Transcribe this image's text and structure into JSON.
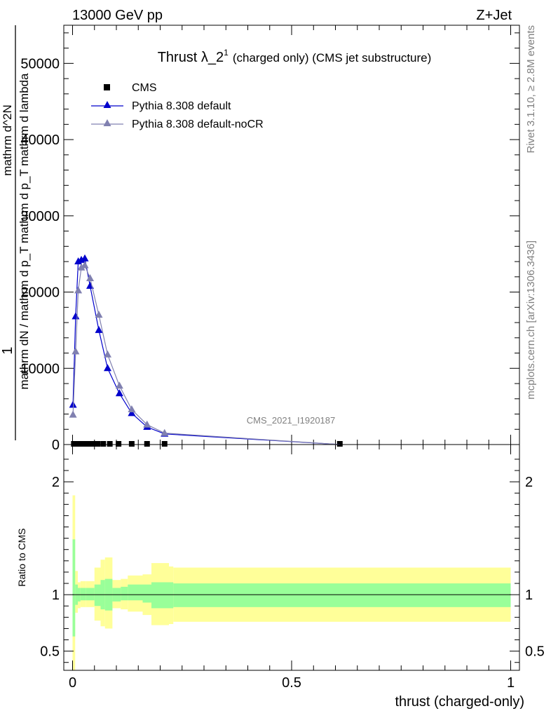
{
  "header": {
    "left": "13000 GeV pp",
    "right": "Z+Jet"
  },
  "side_texts": {
    "rivet": "Rivet 3.1.10, ≥ 2.8M events",
    "mcplots": "mcplots.cern.ch [arXiv:1306.3436]"
  },
  "analysis_id": "CMS_2021_I1920187",
  "chart_data": [
    {
      "type": "line",
      "title": "Thrust λ_2",
      "title_sup": "1",
      "subtitle": "(charged only) (CMS jet substructure)",
      "ylabel_numerator": "1",
      "ylabel_denominator": "mathrm dN / mathrm d p_T mathrm d p_T mathrm d lambda",
      "ylabel_sub": "mathrm d^2N",
      "ylim": [
        0,
        55000
      ],
      "xlim": [
        -0.02,
        1.02
      ],
      "yticks": [
        0,
        10000,
        20000,
        30000,
        40000,
        50000
      ],
      "ytick_labels": [
        "0",
        "10000",
        "20000",
        "30000",
        "40000",
        "50000"
      ],
      "legend": {
        "position": "top-left",
        "entries": [
          "CMS",
          "Pythia 8.308 default",
          "Pythia 8.308 default-noCR"
        ]
      },
      "series": [
        {
          "name": "CMS",
          "marker": "square",
          "color": "#000000",
          "x": [
            0.003,
            0.009,
            0.015,
            0.021,
            0.027,
            0.035,
            0.045,
            0.057,
            0.07,
            0.085,
            0.105,
            0.135,
            0.17,
            0.21,
            0.61
          ],
          "y": [
            0,
            0,
            0,
            0,
            0,
            0,
            0,
            0,
            0,
            0,
            0,
            0,
            0,
            0,
            0
          ]
        },
        {
          "name": "Pythia 8.308 default",
          "marker": "triangle",
          "color": "#0000cc",
          "x": [
            0.001,
            0.007,
            0.013,
            0.02,
            0.028,
            0.04,
            0.06,
            0.08,
            0.107,
            0.135,
            0.17,
            0.21,
            0.61
          ],
          "y": [
            5200,
            16800,
            24000,
            24200,
            24400,
            20800,
            15000,
            10000,
            6700,
            4100,
            2300,
            1400,
            0
          ]
        },
        {
          "name": "Pythia 8.308 default-noCR",
          "marker": "triangle",
          "color": "#8080b0",
          "x": [
            0.001,
            0.007,
            0.013,
            0.02,
            0.028,
            0.04,
            0.06,
            0.08,
            0.107,
            0.135,
            0.17,
            0.21,
            0.61
          ],
          "y": [
            3900,
            12200,
            20200,
            23200,
            23500,
            21800,
            17000,
            11800,
            7700,
            4600,
            2600,
            1500,
            0
          ]
        }
      ]
    },
    {
      "type": "area",
      "ylabel": "Ratio to CMS",
      "xlabel": "thrust (charged-only)",
      "ylim": [
        0.33,
        2.33
      ],
      "yticks": [
        0.5,
        1,
        2
      ],
      "ytick_labels": [
        "0.5",
        "1",
        "2"
      ],
      "xticks": [
        0,
        0.5,
        1
      ],
      "xtick_labels": [
        "0",
        "0.5",
        "1"
      ],
      "reference_line": 1,
      "bands": {
        "edges": [
          0,
          0.006,
          0.012,
          0.018,
          0.024,
          0.03,
          0.036,
          0.05,
          0.064,
          0.074,
          0.091,
          0.11,
          0.126,
          0.16,
          0.18,
          0.22,
          0.23,
          1.0
        ],
        "green_low": [
          0.63,
          0.91,
          0.94,
          0.95,
          0.95,
          0.95,
          0.95,
          0.9,
          0.87,
          0.86,
          0.94,
          0.95,
          0.95,
          0.93,
          0.88,
          0.88,
          0.89
        ],
        "green_high": [
          1.49,
          1.09,
          1.06,
          1.06,
          1.06,
          1.06,
          1.06,
          1.09,
          1.13,
          1.14,
          1.06,
          1.07,
          1.09,
          1.09,
          1.11,
          1.11,
          1.1
        ],
        "yellow_low": [
          0.33,
          0.84,
          0.88,
          0.89,
          0.89,
          0.89,
          0.89,
          0.77,
          0.72,
          0.7,
          0.88,
          0.87,
          0.85,
          0.82,
          0.73,
          0.74,
          0.76
        ],
        "yellow_high": [
          1.88,
          1.21,
          1.11,
          1.12,
          1.12,
          1.12,
          1.12,
          1.24,
          1.31,
          1.33,
          1.13,
          1.14,
          1.17,
          1.18,
          1.28,
          1.25,
          1.24
        ],
        "green_color": "#99ff99",
        "yellow_color": "#ffff99"
      }
    }
  ]
}
